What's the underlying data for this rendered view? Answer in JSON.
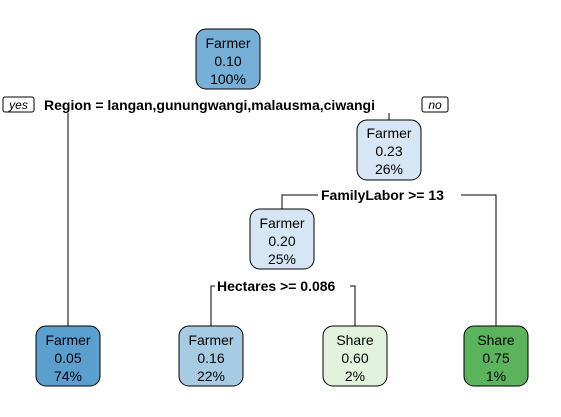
{
  "colors": {
    "farmer_dark": "#5b9fcf",
    "farmer_mid": "#77b0d6",
    "farmer_light": "#a8cbe4",
    "farmer_pale": "#d6e6f4",
    "share_pale": "#e2f3dd",
    "share_dark": "#5bb35c"
  },
  "tags": {
    "yes": "yes",
    "no": "no"
  },
  "nodes": {
    "root": {
      "class": "Farmer",
      "value": "0.10",
      "percent": "100%"
    },
    "n_right": {
      "class": "Farmer",
      "value": "0.23",
      "percent": "26%"
    },
    "n_family": {
      "class": "Farmer",
      "value": "0.20",
      "percent": "25%"
    },
    "leaf1": {
      "class": "Farmer",
      "value": "0.05",
      "percent": "74%"
    },
    "leaf2": {
      "class": "Farmer",
      "value": "0.16",
      "percent": "22%"
    },
    "leaf3": {
      "class": "Share",
      "value": "0.60",
      "percent": "2%"
    },
    "leaf4": {
      "class": "Share",
      "value": "0.75",
      "percent": "1%"
    }
  },
  "splits": {
    "region": "Region = langan,gunungwangi,malausma,ciwangi",
    "family": "FamilyLabor >= 13",
    "hectares": "Hectares >= 0.086"
  }
}
